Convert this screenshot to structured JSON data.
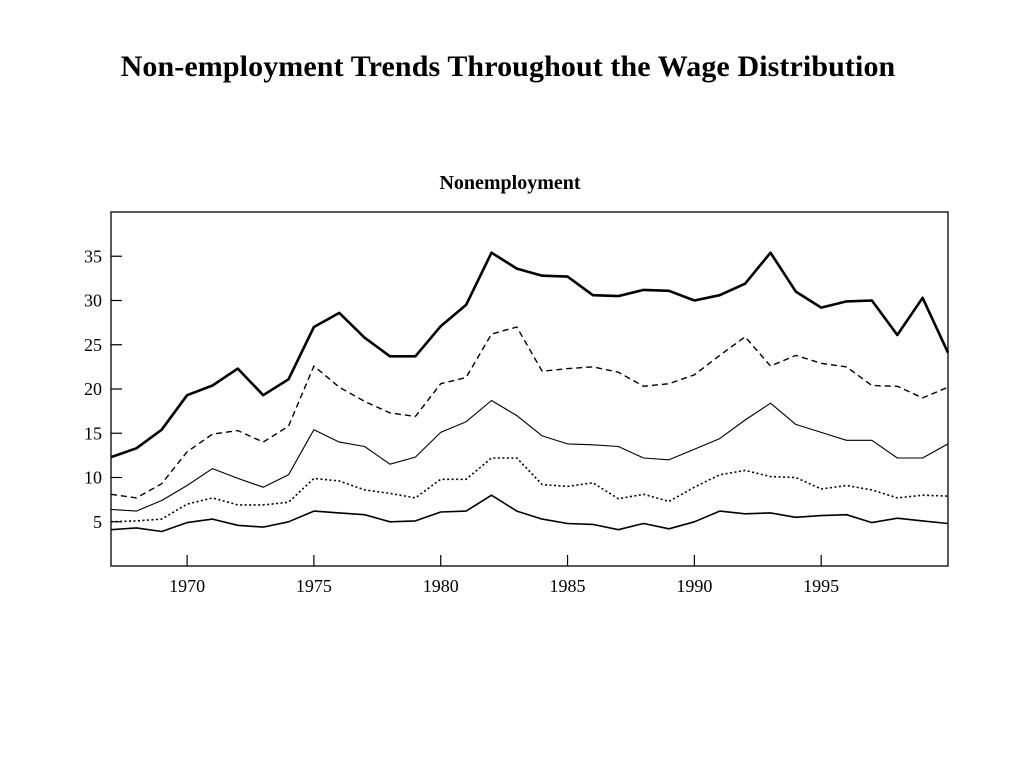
{
  "slide": {
    "title": "Non-employment Trends Throughout the Wage Distribution"
  },
  "chart_data": {
    "type": "line",
    "title": "Nonemployment",
    "xlabel": "",
    "ylabel": "",
    "xlim": [
      1967,
      2000
    ],
    "ylim": [
      0,
      40
    ],
    "xticks": [
      1970,
      1975,
      1980,
      1985,
      1990,
      1995
    ],
    "yticks": [
      5,
      10,
      15,
      20,
      25,
      30,
      35
    ],
    "grid": false,
    "legend": "none",
    "x": [
      1967,
      1968,
      1969,
      1970,
      1971,
      1972,
      1973,
      1974,
      1975,
      1976,
      1977,
      1978,
      1979,
      1980,
      1981,
      1982,
      1983,
      1984,
      1985,
      1986,
      1987,
      1988,
      1989,
      1990,
      1991,
      1992,
      1993,
      1994,
      1995,
      1996,
      1997,
      1998,
      1999,
      2000
    ],
    "series": [
      {
        "style": "thick-solid",
        "values": [
          12.3,
          13.3,
          15.4,
          19.3,
          20.4,
          22.3,
          19.3,
          21.1,
          27.0,
          28.6,
          25.8,
          23.7,
          23.7,
          27.1,
          29.5,
          35.4,
          33.6,
          32.8,
          32.7,
          30.6,
          30.5,
          31.2,
          31.1,
          30.0,
          30.6,
          31.9,
          35.4,
          31.0,
          29.2,
          29.9,
          30.0,
          26.1,
          30.3,
          24.1
        ]
      },
      {
        "style": "dashed",
        "values": [
          8.1,
          7.7,
          9.3,
          12.9,
          14.9,
          15.3,
          14.0,
          15.8,
          22.6,
          20.2,
          18.6,
          17.3,
          16.9,
          20.6,
          21.3,
          26.2,
          27.0,
          22.0,
          22.3,
          22.5,
          21.9,
          20.3,
          20.6,
          21.6,
          23.8,
          25.9,
          22.6,
          23.8,
          22.9,
          22.5,
          20.4,
          20.3,
          19.0,
          20.2
        ]
      },
      {
        "style": "thin-solid",
        "values": [
          6.4,
          6.2,
          7.4,
          9.1,
          11.0,
          9.9,
          8.9,
          10.3,
          15.4,
          14.0,
          13.5,
          11.5,
          12.3,
          15.1,
          16.3,
          18.7,
          17.0,
          14.7,
          13.8,
          13.7,
          13.5,
          12.2,
          12.0,
          13.2,
          14.4,
          16.5,
          18.4,
          16.0,
          15.1,
          14.2,
          14.2,
          12.2,
          12.2,
          13.8
        ]
      },
      {
        "style": "dotted",
        "values": [
          5.0,
          5.1,
          5.3,
          7.0,
          7.7,
          6.9,
          6.9,
          7.2,
          9.9,
          9.6,
          8.6,
          8.2,
          7.7,
          9.8,
          9.8,
          12.2,
          12.2,
          9.2,
          9.0,
          9.4,
          7.6,
          8.1,
          7.3,
          8.9,
          10.3,
          10.8,
          10.1,
          10.0,
          8.7,
          9.1,
          8.6,
          7.7,
          8.0,
          7.9
        ]
      },
      {
        "style": "solid",
        "values": [
          4.1,
          4.3,
          3.9,
          4.9,
          5.3,
          4.6,
          4.4,
          5.0,
          6.2,
          6.0,
          5.8,
          5.0,
          5.1,
          6.1,
          6.2,
          8.0,
          6.2,
          5.3,
          4.8,
          4.7,
          4.1,
          4.8,
          4.2,
          5.0,
          6.2,
          5.9,
          6.0,
          5.5,
          5.7,
          5.8,
          4.9,
          5.4,
          5.1,
          4.8
        ]
      }
    ]
  }
}
